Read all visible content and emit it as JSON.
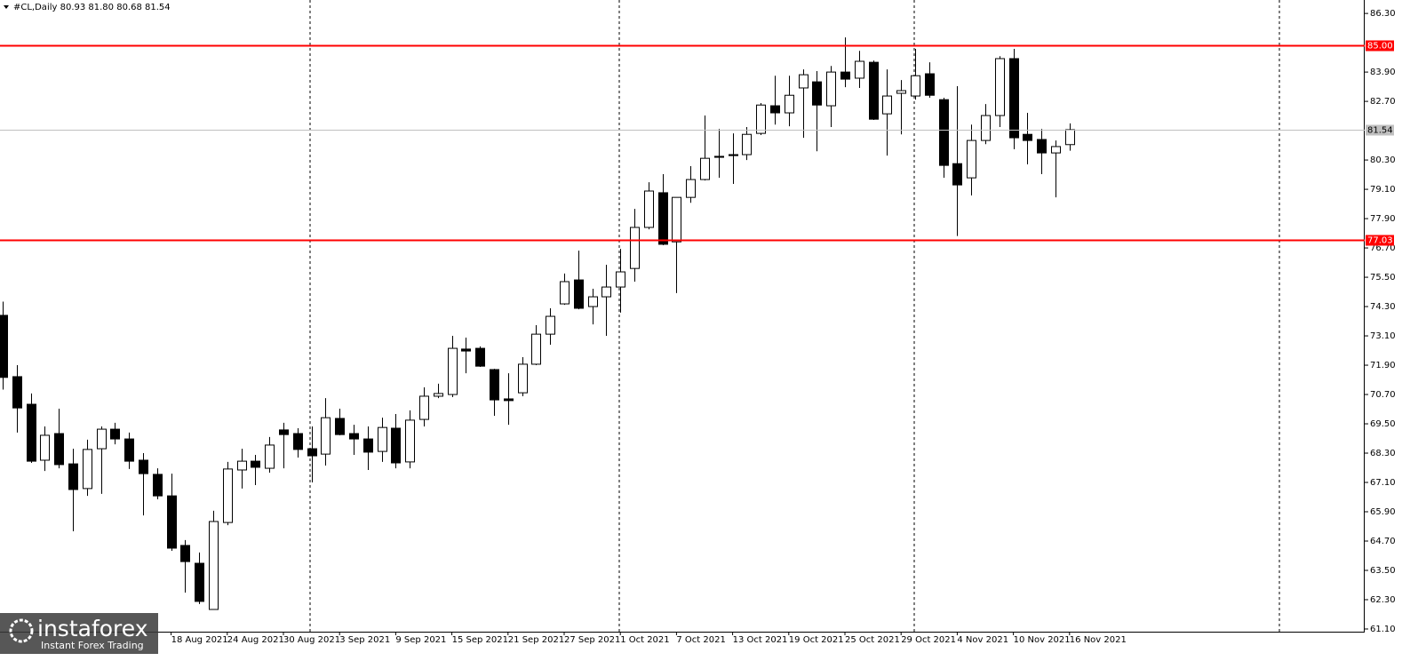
{
  "chart_data": {
    "type": "candlestick",
    "title": "#CL,Daily 80.93 81.80 80.68 81.54",
    "categories": [
      null,
      null,
      null,
      null,
      null,
      null,
      null,
      null,
      null,
      null,
      null,
      null,
      "18 Aug 2021",
      null,
      null,
      null,
      "24 Aug 2021",
      null,
      null,
      null,
      "30 Aug 2021",
      null,
      null,
      null,
      "3 Sep 2021",
      null,
      null,
      null,
      "9 Sep 2021",
      null,
      null,
      null,
      "15 Sep 2021",
      null,
      null,
      null,
      "21 Sep 2021",
      null,
      null,
      null,
      "27 Sep 2021",
      null,
      null,
      null,
      "1 Oct 2021",
      null,
      null,
      null,
      "7 Oct 2021",
      null,
      null,
      null,
      "13 Oct 2021",
      null,
      null,
      null,
      "19 Oct 2021",
      null,
      null,
      null,
      "25 Oct 2021",
      null,
      null,
      null,
      "29 Oct 2021",
      null,
      null,
      null,
      "4 Nov 2021",
      null,
      null,
      null,
      "10 Nov 2021",
      null,
      null,
      null,
      "16 Nov 2021"
    ],
    "open": [
      73.94,
      71.43,
      70.3,
      68.01,
      69.1,
      67.86,
      66.85,
      68.48,
      69.28,
      68.88,
      68.01,
      67.43,
      66.55,
      64.52,
      63.79,
      61.9,
      65.46,
      67.61,
      67.97,
      67.68,
      69.25,
      69.1,
      68.48,
      68.26,
      69.72,
      69.1,
      68.88,
      68.37,
      69.32,
      67.94,
      69.68,
      70.63,
      70.7,
      72.56,
      72.59,
      71.72,
      70.52,
      70.77,
      71.94,
      73.17,
      74.41,
      75.39,
      74.3,
      74.7,
      75.1,
      75.86,
      77.54,
      78.96,
      76.95,
      78.77,
      79.5,
      80.45,
      80.52,
      80.52,
      81.39,
      82.52,
      82.23,
      83.25,
      83.5,
      82.52,
      83.9,
      83.65,
      84.3,
      82.19,
      83.03,
      82.92,
      83.83,
      82.77,
      80.15,
      79.57,
      81.1,
      82.12,
      84.45,
      81.35,
      81.14,
      80.59,
      80.93
    ],
    "high": [
      74.5,
      71.9,
      70.74,
      69.39,
      70.12,
      68.48,
      68.85,
      69.39,
      69.54,
      69.14,
      68.3,
      67.68,
      67.46,
      64.74,
      64.23,
      65.94,
      67.94,
      68.48,
      68.23,
      68.96,
      69.54,
      69.32,
      69.39,
      70.55,
      70.12,
      69.46,
      69.39,
      69.75,
      69.9,
      70.05,
      70.99,
      71.14,
      73.1,
      73.03,
      72.67,
      71.75,
      71.57,
      72.23,
      73.54,
      74.23,
      75.65,
      76.59,
      75.03,
      76.01,
      76.66,
      78.3,
      79.39,
      79.72,
      78.77,
      80.05,
      82.12,
      81.57,
      81.39,
      81.65,
      82.63,
      83.75,
      83.75,
      84.01,
      83.94,
      84.15,
      85.32,
      84.77,
      84.37,
      84.01,
      83.57,
      84.85,
      84.3,
      82.85,
      83.32,
      81.75,
      82.59,
      84.55,
      84.85,
      82.23,
      81.57,
      81.1,
      81.8
    ],
    "low": [
      70.9,
      69.14,
      67.9,
      67.57,
      67.68,
      65.1,
      66.55,
      66.63,
      68.66,
      67.65,
      65.75,
      66.41,
      64.3,
      62.59,
      62.12,
      61.9,
      65.35,
      66.85,
      66.99,
      67.5,
      67.68,
      68.12,
      67.1,
      67.79,
      69.03,
      68.23,
      67.61,
      67.94,
      67.68,
      67.68,
      69.39,
      70.55,
      70.59,
      71.57,
      71.83,
      69.83,
      69.46,
      70.63,
      71.9,
      72.74,
      74.37,
      74.19,
      73.57,
      73.1,
      74.05,
      75.32,
      77.46,
      76.81,
      74.85,
      78.55,
      79.46,
      79.57,
      79.32,
      80.3,
      81.32,
      81.75,
      81.68,
      81.21,
      80.66,
      81.65,
      83.28,
      83.25,
      81.94,
      80.48,
      81.35,
      82.77,
      82.85,
      79.57,
      77.19,
      78.85,
      80.95,
      81.65,
      80.74,
      80.12,
      79.72,
      78.77,
      80.68
    ],
    "close": [
      71.4,
      70.15,
      67.97,
      69.03,
      67.83,
      66.81,
      68.45,
      69.28,
      68.88,
      67.97,
      67.46,
      66.55,
      64.41,
      63.86,
      62.23,
      65.5,
      67.65,
      67.97,
      67.72,
      68.63,
      69.06,
      68.45,
      68.19,
      69.75,
      69.06,
      68.88,
      68.34,
      69.35,
      67.9,
      69.65,
      70.63,
      70.74,
      72.59,
      72.48,
      71.86,
      70.48,
      70.45,
      71.94,
      73.17,
      73.9,
      75.32,
      74.23,
      74.7,
      75.1,
      75.72,
      77.54,
      79.03,
      76.85,
      78.77,
      79.5,
      80.37,
      80.41,
      80.48,
      81.35,
      82.55,
      82.23,
      82.95,
      83.79,
      82.55,
      83.9,
      83.61,
      84.34,
      81.97,
      82.92,
      83.14,
      83.75,
      82.95,
      80.08,
      79.28,
      81.1,
      82.12,
      84.45,
      81.21,
      81.1,
      80.59,
      80.85,
      81.54
    ],
    "ylim": [
      60.99,
      86.85
    ],
    "yticks": [
      {
        "value": 86.3,
        "label": "86.30"
      },
      {
        "value": 83.9,
        "label": "83.90"
      },
      {
        "value": 82.7,
        "label": "82.70"
      },
      {
        "value": 80.3,
        "label": "80.30"
      },
      {
        "value": 79.1,
        "label": "79.10"
      },
      {
        "value": 77.9,
        "label": "77.90"
      },
      {
        "value": 76.7,
        "label": "76.70"
      },
      {
        "value": 75.5,
        "label": "75.50"
      },
      {
        "value": 74.3,
        "label": "74.30"
      },
      {
        "value": 73.1,
        "label": "73.10"
      },
      {
        "value": 71.9,
        "label": "71.90"
      },
      {
        "value": 70.7,
        "label": "70.70"
      },
      {
        "value": 69.5,
        "label": "69.50"
      },
      {
        "value": 68.3,
        "label": "68.30"
      },
      {
        "value": 67.1,
        "label": "67.10"
      },
      {
        "value": 65.9,
        "label": "65.90"
      },
      {
        "value": 64.7,
        "label": "64.70"
      },
      {
        "value": 63.5,
        "label": "63.50"
      },
      {
        "value": 62.3,
        "label": "62.30"
      },
      {
        "value": 61.1,
        "label": "61.10"
      }
    ],
    "levels": [
      {
        "value": 85.0,
        "label": "85.00",
        "color": "#ff0000"
      },
      {
        "value": 77.03,
        "label": "77.03",
        "color": "#ff0000"
      },
      {
        "value": 81.54,
        "label": "81.54",
        "color": "#c0c0c0"
      }
    ]
  },
  "watermark": {
    "name": "instaforex",
    "tagline": "Instant Forex Trading"
  }
}
